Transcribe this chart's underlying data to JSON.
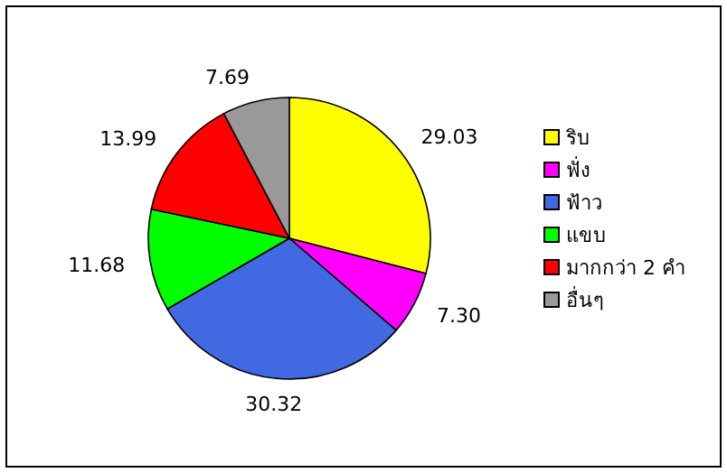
{
  "chart_data": {
    "type": "pie",
    "categories": [
      "ริบ",
      "ฟั่ง",
      "ฟ้าว",
      "แขบ",
      "มากกว่า 2 คำ",
      "อื่นๆ"
    ],
    "values": [
      29.03,
      7.3,
      30.32,
      11.68,
      13.99,
      7.69
    ],
    "value_labels": [
      "29.03",
      "7.30",
      "30.32",
      "11.68",
      "13.99",
      "7.69"
    ],
    "colors": [
      "#ffff00",
      "#ff00ff",
      "#4169e1",
      "#00ff00",
      "#ff0000",
      "#999999"
    ],
    "legend": "right"
  }
}
